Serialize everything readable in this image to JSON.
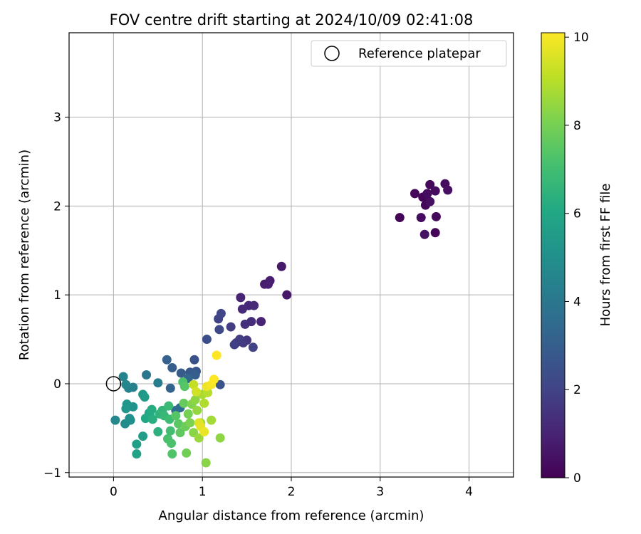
{
  "chart_data": {
    "type": "scatter",
    "title": "FOV centre drift starting at 2024/10/09 02:41:08",
    "xlabel": "Angular distance from reference (arcmin)",
    "ylabel": "Rotation from reference (arcmin)",
    "xlim": [
      -0.5,
      4.5
    ],
    "ylim": [
      -1.05,
      3.95
    ],
    "xticks": [
      0,
      1,
      2,
      3,
      4
    ],
    "yticks": [
      -1,
      0,
      1,
      2,
      3
    ],
    "xtick_labels": [
      "0",
      "1",
      "2",
      "3",
      "4"
    ],
    "ytick_labels": [
      "−1",
      "0",
      "1",
      "2",
      "3"
    ],
    "grid": true,
    "legend": {
      "position": "top-right",
      "entries": [
        "Reference platepar"
      ]
    },
    "reference_point": {
      "x": 0,
      "y": 0
    },
    "colorbar": {
      "label": "Hours from first FF file",
      "colormap": "viridis",
      "range": [
        0,
        10.1
      ],
      "ticks": [
        0,
        2,
        4,
        6,
        8,
        10
      ],
      "tick_labels": [
        "0",
        "2",
        "4",
        "6",
        "8",
        "10"
      ]
    },
    "series": [
      {
        "points": [
          [
            3.22,
            1.87,
            0.1
          ],
          [
            3.39,
            2.14,
            0.2
          ],
          [
            3.46,
            1.87,
            0.3
          ],
          [
            3.48,
            2.1,
            0.1
          ],
          [
            3.51,
            2.01,
            0.2
          ],
          [
            3.53,
            2.14,
            0.3
          ],
          [
            3.56,
            2.24,
            0.2
          ],
          [
            3.56,
            2.05,
            0.4
          ],
          [
            3.62,
            2.17,
            0.3
          ],
          [
            3.62,
            1.7,
            0.1
          ],
          [
            3.63,
            1.88,
            0.2
          ],
          [
            3.73,
            2.25,
            0.3
          ],
          [
            3.76,
            2.18,
            0.4
          ],
          [
            3.5,
            1.68,
            0.5
          ],
          [
            1.95,
            1.0,
            0.6
          ],
          [
            1.89,
            1.32,
            0.7
          ],
          [
            1.76,
            1.16,
            0.8
          ],
          [
            1.74,
            1.12,
            0.9
          ],
          [
            1.7,
            1.12,
            0.8
          ],
          [
            1.66,
            0.7,
            1.0
          ],
          [
            1.58,
            0.88,
            1.2
          ],
          [
            1.55,
            0.7,
            1.3
          ],
          [
            1.52,
            0.88,
            1.1
          ],
          [
            1.48,
            0.67,
            1.4
          ],
          [
            1.45,
            0.84,
            1.2
          ],
          [
            1.43,
            0.97,
            1.0
          ],
          [
            1.5,
            0.49,
            1.6
          ],
          [
            1.46,
            0.46,
            1.7
          ],
          [
            1.42,
            0.5,
            1.8
          ],
          [
            1.38,
            0.46,
            1.6
          ],
          [
            1.36,
            0.44,
            1.9
          ],
          [
            1.57,
            0.41,
            2.0
          ],
          [
            1.32,
            0.64,
            1.8
          ],
          [
            1.21,
            0.79,
            2.1
          ],
          [
            1.18,
            0.73,
            2.0
          ],
          [
            1.19,
            0.61,
            2.2
          ],
          [
            1.05,
            0.5,
            2.4
          ],
          [
            0.91,
            0.27,
            2.5
          ],
          [
            1.2,
            -0.01,
            2.6
          ],
          [
            0.93,
            0.14,
            2.7
          ],
          [
            0.86,
            0.13,
            2.8
          ],
          [
            0.76,
            0.12,
            2.9
          ],
          [
            0.66,
            0.18,
            3.0
          ],
          [
            0.6,
            0.27,
            3.1
          ],
          [
            0.64,
            -0.05,
            3.2
          ],
          [
            0.92,
            0.1,
            3.0
          ],
          [
            0.84,
            0.06,
            3.3
          ],
          [
            0.75,
            -0.27,
            3.5
          ],
          [
            0.7,
            -0.3,
            3.6
          ],
          [
            0.37,
            0.1,
            4.0
          ],
          [
            0.5,
            0.01,
            4.2
          ],
          [
            0.22,
            -0.04,
            4.3
          ],
          [
            0.17,
            -0.05,
            4.4
          ],
          [
            0.11,
            0.08,
            4.5
          ],
          [
            0.14,
            -0.01,
            4.6
          ],
          [
            0.02,
            -0.41,
            4.7
          ],
          [
            0.13,
            -0.45,
            4.8
          ],
          [
            0.19,
            -0.41,
            4.9
          ],
          [
            0.18,
            -0.39,
            5.0
          ],
          [
            0.22,
            -0.26,
            5.1
          ],
          [
            0.15,
            -0.23,
            5.2
          ],
          [
            0.14,
            -0.28,
            5.3
          ],
          [
            0.33,
            -0.12,
            5.4
          ],
          [
            0.35,
            -0.15,
            5.5
          ],
          [
            0.33,
            -0.59,
            5.6
          ],
          [
            0.26,
            -0.68,
            5.7
          ],
          [
            0.26,
            -0.79,
            5.8
          ],
          [
            0.4,
            -0.33,
            5.9
          ],
          [
            0.36,
            -0.39,
            6.0
          ],
          [
            0.41,
            -0.35,
            6.1
          ],
          [
            0.43,
            -0.29,
            6.2
          ],
          [
            0.44,
            -0.4,
            6.3
          ],
          [
            0.5,
            -0.54,
            6.4
          ],
          [
            0.52,
            -0.34,
            6.5
          ],
          [
            0.55,
            -0.3,
            6.6
          ],
          [
            0.57,
            -0.36,
            6.7
          ],
          [
            0.62,
            -0.25,
            6.8
          ],
          [
            0.63,
            -0.4,
            6.9
          ],
          [
            0.64,
            -0.53,
            7.0
          ],
          [
            0.61,
            -0.62,
            7.1
          ],
          [
            0.65,
            -0.67,
            7.2
          ],
          [
            0.66,
            -0.79,
            7.3
          ],
          [
            0.7,
            -0.36,
            7.4
          ],
          [
            0.73,
            -0.45,
            7.5
          ],
          [
            0.75,
            -0.55,
            7.6
          ],
          [
            0.78,
            0.02,
            7.2
          ],
          [
            0.8,
            -0.03,
            7.4
          ],
          [
            0.79,
            -0.22,
            7.7
          ],
          [
            0.81,
            -0.48,
            7.8
          ],
          [
            0.82,
            -0.78,
            7.9
          ],
          [
            0.84,
            -0.34,
            8.0
          ],
          [
            0.86,
            -0.44,
            8.1
          ],
          [
            0.88,
            -0.23,
            8.2
          ],
          [
            0.9,
            -0.55,
            8.3
          ],
          [
            0.92,
            -0.18,
            8.4
          ],
          [
            0.94,
            -0.3,
            8.5
          ],
          [
            0.96,
            -0.61,
            8.6
          ],
          [
            0.98,
            -0.44,
            8.7
          ],
          [
            1.0,
            -0.12,
            8.8
          ],
          [
            1.02,
            -0.22,
            8.9
          ],
          [
            1.04,
            -0.89,
            8.3
          ],
          [
            1.06,
            -0.1,
            9.0
          ],
          [
            1.1,
            -0.41,
            8.7
          ],
          [
            1.2,
            -0.61,
            8.4
          ],
          [
            0.9,
            -0.01,
            9.2
          ],
          [
            0.93,
            -0.09,
            9.4
          ],
          [
            0.96,
            -0.44,
            9.6
          ],
          [
            1.02,
            -0.54,
            9.8
          ],
          [
            1.05,
            -0.03,
            9.9
          ],
          [
            1.1,
            -0.01,
            10.0
          ],
          [
            1.13,
            0.05,
            10.1
          ],
          [
            1.16,
            0.32,
            10.1
          ],
          [
            0.98,
            -0.48,
            9.7
          ]
        ]
      }
    ]
  }
}
